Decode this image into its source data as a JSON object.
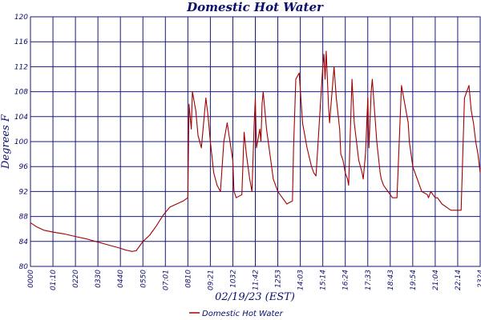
{
  "chart_data": {
    "type": "line",
    "title": "Domestic Hot Water",
    "xlabel": "02/19/23 (EST)",
    "ylabel": "Degrees F",
    "ylim": [
      80,
      120
    ],
    "yticks": [
      80,
      84,
      88,
      92,
      96,
      100,
      104,
      108,
      112,
      116,
      120
    ],
    "xticks": [
      "0000",
      "01:10",
      "0220",
      "0330",
      "0440",
      "0550",
      "07:01",
      "0810",
      "09:21",
      "1032",
      "11:42",
      "1253",
      "14:03",
      "15:14",
      "16:24",
      "17:33",
      "18:43",
      "19:54",
      "21:04",
      "22:14",
      "2324"
    ],
    "grid": true,
    "legend_position": "bottom-center",
    "colors": {
      "series": "#a00000",
      "grid": "#1a1a7a",
      "text": "#0d0d6b"
    },
    "series": [
      {
        "name": "Domestic Hot Water",
        "x_unit": "tick index",
        "x": [
          0,
          0.3,
          0.6,
          1.0,
          1.5,
          2.0,
          2.5,
          3.0,
          3.5,
          4.0,
          4.25,
          4.4,
          4.5,
          4.7,
          5.0,
          5.3,
          5.6,
          5.9,
          6.2,
          6.5,
          6.8,
          7.0,
          7.05,
          7.15,
          7.2,
          7.35,
          7.45,
          7.6,
          7.8,
          7.9,
          8.0,
          8.15,
          8.3,
          8.45,
          8.6,
          8.75,
          9.0,
          9.05,
          9.15,
          9.4,
          9.5,
          9.6,
          9.75,
          9.85,
          9.95,
          10.0,
          10.05,
          10.2,
          10.25,
          10.3,
          10.35,
          10.5,
          10.65,
          10.8,
          11.0,
          11.2,
          11.4,
          11.65,
          11.7,
          11.8,
          11.95,
          12.1,
          12.3,
          12.5,
          12.6,
          12.7,
          13.0,
          13.05,
          13.1,
          13.15,
          13.25,
          13.3,
          13.5,
          13.6,
          13.75,
          13.8,
          13.9,
          14.0,
          14.1,
          14.15,
          14.3,
          14.4,
          14.6,
          14.75,
          14.8,
          14.9,
          15.0,
          15.05,
          15.15,
          15.2,
          15.4,
          15.55,
          15.6,
          15.7,
          15.9,
          16.0,
          16.1,
          16.3,
          16.5,
          16.8,
          16.85,
          17.0,
          17.2,
          17.4,
          17.65,
          17.7,
          17.8,
          18.0,
          18.1,
          18.3,
          18.5,
          18.7,
          18.9,
          19.15,
          19.3,
          19.5,
          19.6,
          19.7,
          19.8,
          19.9,
          20.0
        ],
        "y": [
          87,
          86.3,
          85.8,
          85.5,
          85.2,
          84.8,
          84.4,
          83.9,
          83.4,
          82.9,
          82.6,
          82.5,
          82.4,
          82.5,
          84.0,
          85.0,
          86.5,
          88.2,
          89.5,
          90.0,
          90.5,
          91.0,
          106.0,
          102.0,
          108.0,
          105.0,
          101.0,
          99.0,
          107.0,
          104.0,
          100.0,
          95.0,
          93.0,
          92.0,
          100.0,
          103.0,
          97.0,
          92.0,
          91.0,
          91.5,
          101.5,
          98.0,
          94.0,
          92.0,
          103.0,
          107.0,
          99.0,
          102.0,
          100.0,
          106.0,
          108.0,
          102.0,
          98.0,
          94.0,
          92.0,
          91.0,
          90.0,
          90.5,
          99.0,
          110.0,
          111.0,
          103.0,
          99.0,
          96.0,
          95.0,
          94.5,
          112.0,
          114.0,
          110.0,
          114.5,
          106.0,
          103.0,
          112.0,
          107.0,
          102.0,
          98.0,
          97.0,
          95.0,
          94.0,
          93.0,
          110.0,
          103.0,
          97.0,
          95.0,
          94.0,
          98.0,
          107.0,
          99.0,
          108.0,
          110.0,
          100.0,
          95.0,
          94.0,
          93.0,
          92.0,
          91.5,
          91.0,
          91.0,
          109.0,
          103.0,
          100.0,
          96.0,
          94.0,
          92.0,
          91.5,
          91.0,
          92.0,
          91.0,
          91.0,
          90.0,
          89.5,
          89.0,
          89.0,
          89.0,
          107.0,
          109.0,
          105.0,
          103.0,
          100.0,
          98.0,
          95.0
        ]
      }
    ]
  }
}
